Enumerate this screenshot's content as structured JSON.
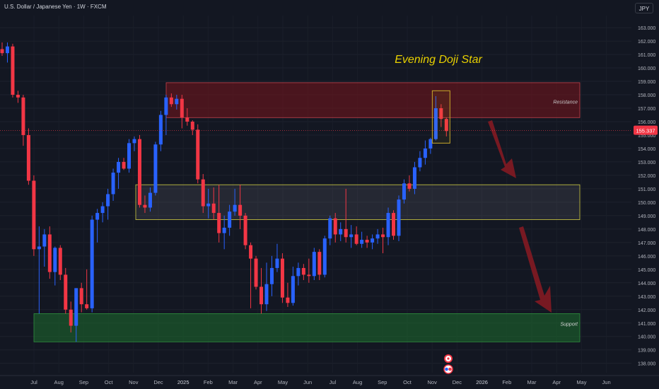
{
  "header": {
    "symbol": "U.S. Dollar / Japanese Yen · 1W · FXCM"
  },
  "currency_button": "JPY",
  "colors": {
    "background": "#131722",
    "up_candle": "#2962ff",
    "down_candle": "#f23645",
    "resistance_fill": "rgba(120,20,28,0.55)",
    "mid_zone_fill": "rgba(120,123,134,0.18)",
    "support_fill": "rgba(30,110,45,0.55)",
    "annotation_text": "#e8d000",
    "arrow": "#8b1a22"
  },
  "chart_data": {
    "type": "candlestick",
    "y_ticks": [
      138,
      139,
      140,
      141,
      142,
      143,
      144,
      145,
      146,
      147,
      148,
      149,
      150,
      151,
      152,
      153,
      154,
      155,
      156,
      157,
      158,
      159,
      160,
      161,
      162,
      163
    ],
    "ylim": [
      137.3,
      163.9
    ],
    "x_labels": [
      "Jul",
      "Aug",
      "Sep",
      "Oct",
      "Nov",
      "Dec",
      "2025",
      "Feb",
      "Mar",
      "Apr",
      "May",
      "Jun",
      "Jul",
      "Aug",
      "Sep",
      "Oct",
      "Nov",
      "Dec",
      "2026",
      "Feb",
      "Mar",
      "Apr",
      "May",
      "Jun",
      "Jul"
    ],
    "last_price": 155.337,
    "annotations": {
      "pattern": "Evening Doji Star",
      "resistance": "Resistance",
      "support": "Support"
    },
    "zones": [
      {
        "name": "resistance",
        "from": 156.3,
        "to": 158.9
      },
      {
        "name": "mid",
        "from": 148.7,
        "to": 151.3
      },
      {
        "name": "support",
        "from": 139.6,
        "to": 141.7
      }
    ],
    "candles": [
      {
        "o": 161.4,
        "h": 161.9,
        "l": 160.9,
        "c": 161.1
      },
      {
        "o": 161.1,
        "h": 161.9,
        "l": 160.4,
        "c": 161.6
      },
      {
        "o": 161.6,
        "h": 161.8,
        "l": 157.8,
        "c": 158.0
      },
      {
        "o": 158.0,
        "h": 158.3,
        "l": 157.4,
        "c": 157.8
      },
      {
        "o": 157.8,
        "h": 158.0,
        "l": 154.2,
        "c": 155.0
      },
      {
        "o": 155.0,
        "h": 155.5,
        "l": 151.3,
        "c": 151.6
      },
      {
        "o": 151.6,
        "h": 152.0,
        "l": 146.0,
        "c": 146.5
      },
      {
        "o": 146.5,
        "h": 148.2,
        "l": 141.7,
        "c": 146.7
      },
      {
        "o": 146.7,
        "h": 148.0,
        "l": 145.2,
        "c": 147.6
      },
      {
        "o": 147.6,
        "h": 148.2,
        "l": 144.3,
        "c": 144.8
      },
      {
        "o": 144.8,
        "h": 146.7,
        "l": 143.8,
        "c": 146.6
      },
      {
        "o": 146.6,
        "h": 146.8,
        "l": 144.2,
        "c": 144.6
      },
      {
        "o": 144.6,
        "h": 145.1,
        "l": 141.7,
        "c": 142.0
      },
      {
        "o": 142.0,
        "h": 142.6,
        "l": 140.3,
        "c": 140.8
      },
      {
        "o": 140.8,
        "h": 143.6,
        "l": 139.6,
        "c": 143.6
      },
      {
        "o": 143.6,
        "h": 144.0,
        "l": 141.8,
        "c": 142.4
      },
      {
        "o": 142.4,
        "h": 145.0,
        "l": 142.0,
        "c": 142.1
      },
      {
        "o": 142.1,
        "h": 149.0,
        "l": 141.8,
        "c": 148.7
      },
      {
        "o": 148.7,
        "h": 149.5,
        "l": 147.0,
        "c": 149.2
      },
      {
        "o": 149.2,
        "h": 150.0,
        "l": 148.5,
        "c": 149.7
      },
      {
        "o": 149.7,
        "h": 151.0,
        "l": 148.7,
        "c": 150.6
      },
      {
        "o": 150.6,
        "h": 152.5,
        "l": 150.1,
        "c": 152.2
      },
      {
        "o": 152.2,
        "h": 153.3,
        "l": 151.0,
        "c": 153.0
      },
      {
        "o": 153.0,
        "h": 153.3,
        "l": 152.4,
        "c": 152.5
      },
      {
        "o": 152.5,
        "h": 154.7,
        "l": 152.2,
        "c": 154.4
      },
      {
        "o": 154.4,
        "h": 154.9,
        "l": 153.8,
        "c": 154.7
      },
      {
        "o": 154.7,
        "h": 155.0,
        "l": 149.6,
        "c": 149.8
      },
      {
        "o": 149.8,
        "h": 150.5,
        "l": 149.2,
        "c": 149.6
      },
      {
        "o": 149.6,
        "h": 151.1,
        "l": 149.3,
        "c": 150.7
      },
      {
        "o": 150.7,
        "h": 154.5,
        "l": 150.5,
        "c": 154.3
      },
      {
        "o": 154.3,
        "h": 156.8,
        "l": 153.8,
        "c": 156.5
      },
      {
        "o": 156.5,
        "h": 158.0,
        "l": 155.0,
        "c": 157.8
      },
      {
        "o": 157.8,
        "h": 158.1,
        "l": 157.1,
        "c": 157.3
      },
      {
        "o": 157.3,
        "h": 158.0,
        "l": 156.9,
        "c": 157.7
      },
      {
        "o": 157.7,
        "h": 158.0,
        "l": 155.5,
        "c": 156.3
      },
      {
        "o": 156.3,
        "h": 157.0,
        "l": 155.7,
        "c": 156.0
      },
      {
        "o": 156.0,
        "h": 156.1,
        "l": 155.0,
        "c": 155.4
      },
      {
        "o": 155.4,
        "h": 155.8,
        "l": 151.4,
        "c": 151.7
      },
      {
        "o": 151.7,
        "h": 152.1,
        "l": 149.2,
        "c": 149.7
      },
      {
        "o": 149.7,
        "h": 151.0,
        "l": 148.8,
        "c": 149.9
      },
      {
        "o": 149.9,
        "h": 151.1,
        "l": 148.7,
        "c": 149.2
      },
      {
        "o": 149.2,
        "h": 151.3,
        "l": 147.0,
        "c": 147.7
      },
      {
        "o": 147.7,
        "h": 149.0,
        "l": 146.5,
        "c": 148.1
      },
      {
        "o": 148.1,
        "h": 149.8,
        "l": 147.5,
        "c": 149.3
      },
      {
        "o": 149.3,
        "h": 151.0,
        "l": 149.0,
        "c": 149.8
      },
      {
        "o": 149.8,
        "h": 151.3,
        "l": 148.0,
        "c": 149.0
      },
      {
        "o": 149.0,
        "h": 149.2,
        "l": 146.5,
        "c": 146.8
      },
      {
        "o": 146.8,
        "h": 147.0,
        "l": 142.1,
        "c": 145.8
      },
      {
        "o": 145.8,
        "h": 146.0,
        "l": 143.5,
        "c": 143.7
      },
      {
        "o": 143.7,
        "h": 145.1,
        "l": 141.7,
        "c": 142.4
      },
      {
        "o": 142.4,
        "h": 145.5,
        "l": 141.9,
        "c": 143.9
      },
      {
        "o": 143.9,
        "h": 146.0,
        "l": 143.0,
        "c": 145.1
      },
      {
        "o": 145.1,
        "h": 146.9,
        "l": 144.8,
        "c": 145.8
      },
      {
        "o": 145.8,
        "h": 146.2,
        "l": 142.5,
        "c": 142.9
      },
      {
        "o": 142.9,
        "h": 144.0,
        "l": 142.2,
        "c": 142.5
      },
      {
        "o": 142.5,
        "h": 145.2,
        "l": 142.3,
        "c": 144.5
      },
      {
        "o": 144.5,
        "h": 145.5,
        "l": 143.8,
        "c": 145.1
      },
      {
        "o": 145.1,
        "h": 145.4,
        "l": 144.2,
        "c": 144.6
      },
      {
        "o": 144.6,
        "h": 145.8,
        "l": 144.0,
        "c": 144.5
      },
      {
        "o": 144.5,
        "h": 146.6,
        "l": 144.2,
        "c": 146.3
      },
      {
        "o": 146.3,
        "h": 146.5,
        "l": 144.2,
        "c": 144.6
      },
      {
        "o": 144.6,
        "h": 147.5,
        "l": 144.4,
        "c": 147.3
      },
      {
        "o": 147.3,
        "h": 149.0,
        "l": 146.8,
        "c": 148.8
      },
      {
        "o": 148.8,
        "h": 149.2,
        "l": 147.0,
        "c": 147.6
      },
      {
        "o": 147.6,
        "h": 148.5,
        "l": 147.1,
        "c": 148.0
      },
      {
        "o": 148.0,
        "h": 151.0,
        "l": 147.0,
        "c": 147.4
      },
      {
        "o": 147.4,
        "h": 148.3,
        "l": 146.6,
        "c": 147.6
      },
      {
        "o": 147.6,
        "h": 148.2,
        "l": 146.8,
        "c": 146.9
      },
      {
        "o": 146.9,
        "h": 147.8,
        "l": 146.6,
        "c": 147.2
      },
      {
        "o": 147.2,
        "h": 147.5,
        "l": 146.6,
        "c": 147.0
      },
      {
        "o": 147.0,
        "h": 147.6,
        "l": 146.5,
        "c": 147.3
      },
      {
        "o": 147.3,
        "h": 148.0,
        "l": 146.9,
        "c": 147.6
      },
      {
        "o": 147.6,
        "h": 148.1,
        "l": 146.2,
        "c": 147.4
      },
      {
        "o": 147.4,
        "h": 149.6,
        "l": 146.8,
        "c": 149.2
      },
      {
        "o": 149.2,
        "h": 149.4,
        "l": 147.2,
        "c": 147.5
      },
      {
        "o": 147.5,
        "h": 150.5,
        "l": 147.1,
        "c": 150.2
      },
      {
        "o": 150.2,
        "h": 151.7,
        "l": 149.9,
        "c": 151.4
      },
      {
        "o": 151.4,
        "h": 152.0,
        "l": 150.8,
        "c": 151.0
      },
      {
        "o": 151.0,
        "h": 153.0,
        "l": 150.6,
        "c": 152.6
      },
      {
        "o": 152.6,
        "h": 153.8,
        "l": 152.3,
        "c": 153.3
      },
      {
        "o": 153.3,
        "h": 154.6,
        "l": 152.8,
        "c": 154.0
      },
      {
        "o": 154.0,
        "h": 154.8,
        "l": 153.6,
        "c": 154.7
      },
      {
        "o": 154.7,
        "h": 157.9,
        "l": 154.6,
        "c": 157.0
      },
      {
        "o": 157.0,
        "h": 157.3,
        "l": 155.6,
        "c": 156.2
      },
      {
        "o": 156.2,
        "h": 156.3,
        "l": 154.9,
        "c": 155.3
      }
    ]
  }
}
